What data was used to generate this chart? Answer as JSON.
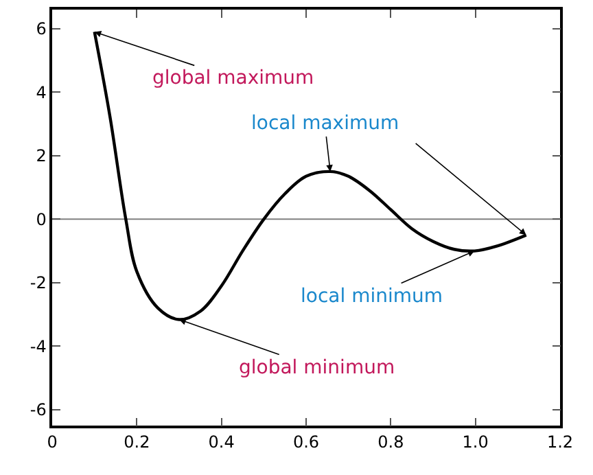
{
  "chart_data": {
    "type": "line",
    "series": [
      {
        "color": "#000000",
        "x": [
          0.1,
          0.137,
          0.174,
          0.2,
          0.25,
          0.3,
          0.35,
          0.4,
          0.45,
          0.5,
          0.55,
          0.6,
          0.657,
          0.7,
          0.75,
          0.8,
          0.85,
          0.9,
          0.95,
          0.998,
          1.05,
          1.12
        ],
        "values": [
          5.9,
          3.2,
          0.0,
          -1.65,
          -2.8,
          -3.16,
          -2.9,
          -2.1,
          -1.0,
          0.0,
          0.8,
          1.35,
          1.5,
          1.35,
          0.9,
          0.3,
          -0.3,
          -0.7,
          -0.95,
          -1.0,
          -0.85,
          -0.5
        ]
      }
    ],
    "xlim": [
      0,
      1.2
    ],
    "xticks": [
      0,
      0.2,
      0.4,
      0.6,
      0.8,
      {
        "value": 1,
        "label": "1.0"
      },
      1.2
    ],
    "ylim": [
      -6.5,
      6.6
    ],
    "yticks": [
      -6,
      -4,
      -2,
      0,
      2,
      4,
      6
    ],
    "ref_lines": [
      {
        "axis": "y",
        "value": 0,
        "color": "#808080"
      }
    ],
    "annotations": [
      {
        "text": "global maximum",
        "x": 0.1,
        "y": 5.9
      },
      {
        "text": "local maximum",
        "x": 0.657,
        "y": 1.5
      },
      {
        "text": "local minimum",
        "x": 0.998,
        "y": -1.0
      },
      {
        "text": "global minimum",
        "x": 0.3,
        "y": -3.16
      }
    ],
    "grid": false,
    "marker": "none",
    "line_style": "solid"
  }
}
